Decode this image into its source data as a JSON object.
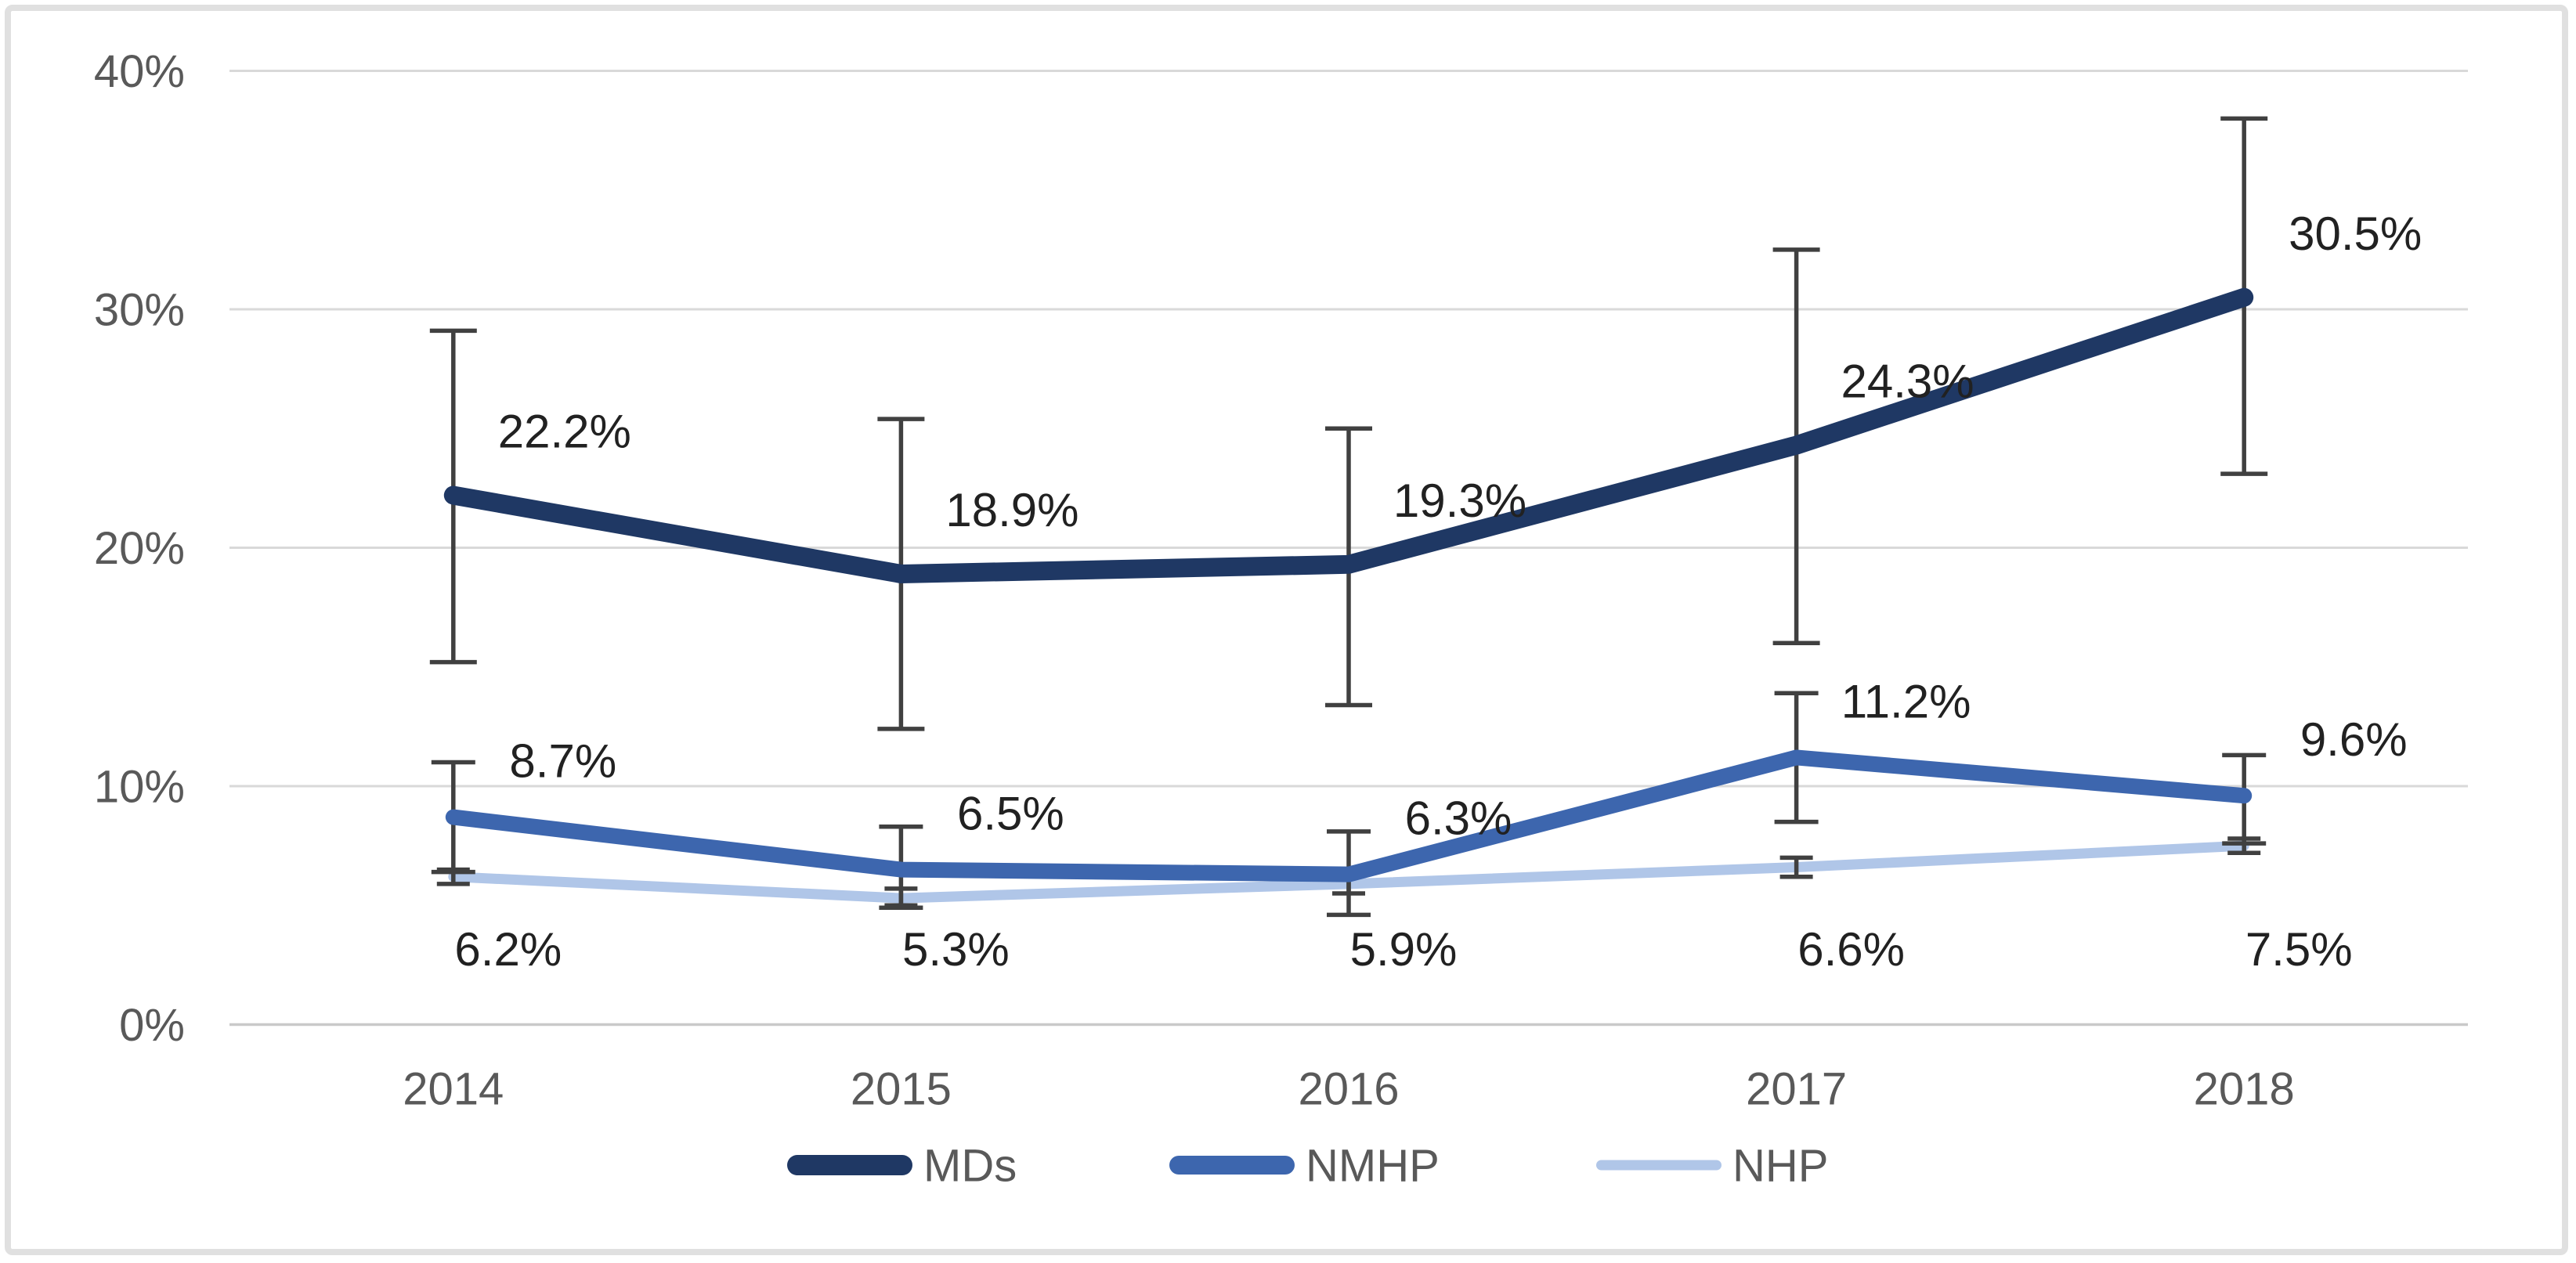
{
  "chart_data": {
    "type": "line",
    "title": "",
    "categories": [
      "2014",
      "2015",
      "2016",
      "2017",
      "2018"
    ],
    "y_axis": {
      "tick_labels": [
        "0%",
        "10%",
        "20%",
        "30%",
        "40%"
      ],
      "min": 0,
      "max": 40,
      "step": 10,
      "grid": true
    },
    "x_axis": {
      "label": ""
    },
    "legend": {
      "position": "bottom"
    },
    "series": [
      {
        "name": "MDs",
        "color": "#1F3864",
        "values": [
          22.2,
          18.9,
          19.3,
          24.3,
          30.5
        ],
        "point_labels": [
          "22.2%",
          "18.9%",
          "19.3%",
          "24.3%",
          "30.5%"
        ],
        "error_low": [
          15.2,
          12.4,
          13.4,
          16.0,
          23.1
        ],
        "error_high": [
          29.1,
          25.4,
          25.0,
          32.5,
          38.0
        ],
        "label_position": "above"
      },
      {
        "name": "NMHP",
        "color": "#3D66AE",
        "values": [
          8.7,
          6.5,
          6.3,
          11.2,
          9.6
        ],
        "point_labels": [
          "8.7%",
          "6.5%",
          "6.3%",
          "11.2%",
          "9.6%"
        ],
        "error_low": [
          6.4,
          4.9,
          4.6,
          8.5,
          7.6
        ],
        "error_high": [
          11.0,
          8.3,
          8.1,
          13.9,
          11.3
        ],
        "label_position": "above"
      },
      {
        "name": "NHP",
        "color": "#B0C6E8",
        "values": [
          6.2,
          5.3,
          5.9,
          6.6,
          7.5
        ],
        "point_labels": [
          "6.2%",
          "5.3%",
          "5.9%",
          "6.6%",
          "7.5%"
        ],
        "error_low": [
          5.9,
          5.0,
          5.5,
          6.2,
          7.2
        ],
        "error_high": [
          6.5,
          5.7,
          6.3,
          7.0,
          7.8
        ],
        "label_position": "below"
      }
    ],
    "colors": {
      "gridline": "#D9D9D9",
      "axis_line": "#C9C9C9",
      "axis_text": "#595959",
      "data_label_text": "#212121",
      "error_bar": "#404040",
      "frame_border": "#E0E0E0",
      "background": "#FFFFFF"
    }
  }
}
